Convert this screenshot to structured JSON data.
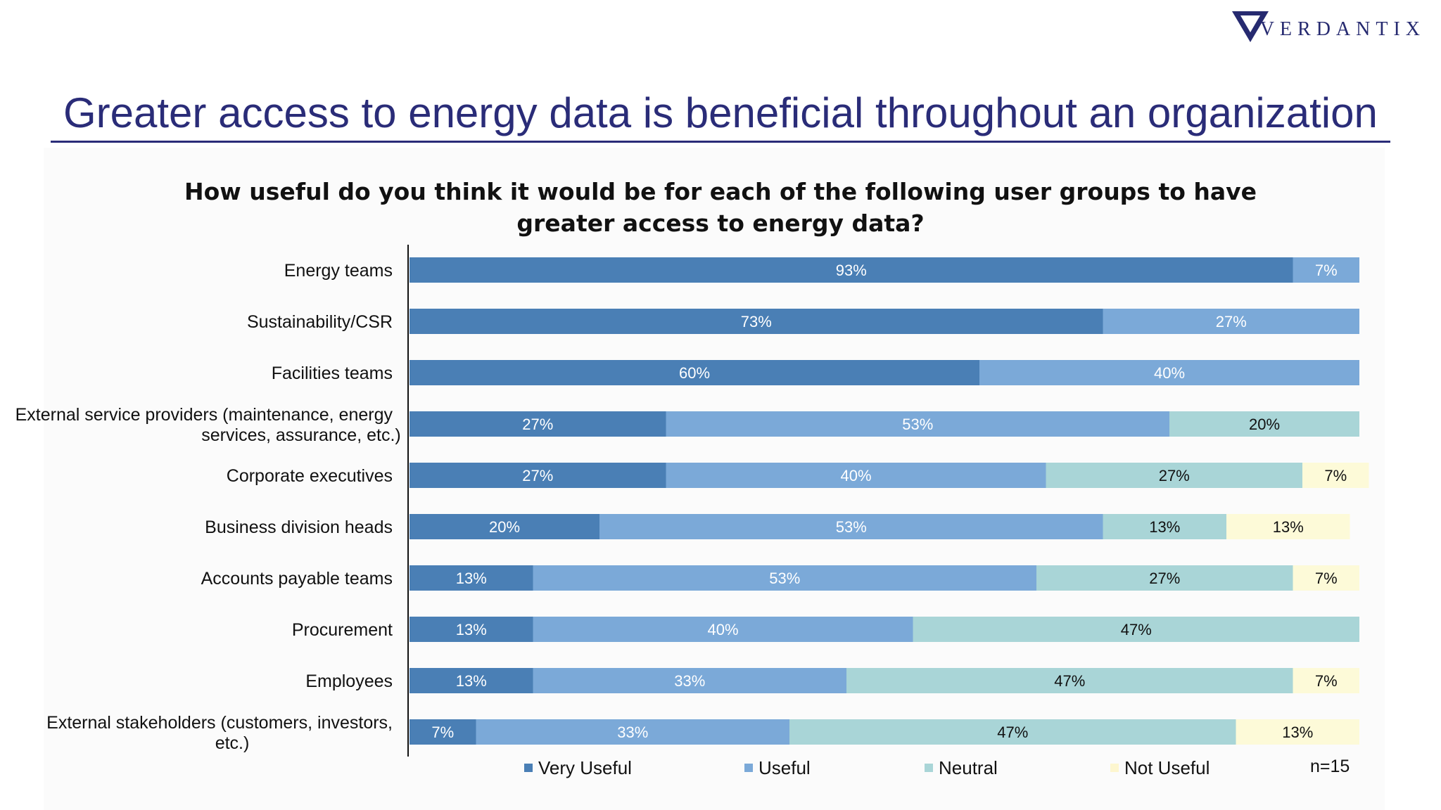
{
  "brand": {
    "name": "VERDANTIX"
  },
  "slide": {
    "title": "Greater access to energy data is beneficial throughout an organization"
  },
  "colors": {
    "very_useful": "#4a7fb5",
    "useful": "#7ba9d8",
    "neutral": "#a9d5d7",
    "not_useful": "#fdfad8",
    "title": "#2a2c78"
  },
  "chart_data": {
    "type": "bar",
    "orientation": "horizontal",
    "stacked": true,
    "title_lines": [
      "How useful do you think it would be for each of the following user groups to have",
      "greater access to energy data?"
    ],
    "categories": [
      [
        "Energy teams"
      ],
      [
        "Sustainability/CSR"
      ],
      [
        "Facilities teams"
      ],
      [
        "External service providers (maintenance, energy",
        "services, assurance, etc.)"
      ],
      [
        "Corporate executives"
      ],
      [
        "Business division heads"
      ],
      [
        "Accounts payable teams"
      ],
      [
        "Procurement"
      ],
      [
        "Employees"
      ],
      [
        "External stakeholders (customers, investors,",
        "etc.)"
      ]
    ],
    "series": [
      {
        "name": "Very Useful",
        "values": [
          93,
          73,
          60,
          27,
          27,
          20,
          13,
          13,
          13,
          7
        ]
      },
      {
        "name": "Useful",
        "values": [
          7,
          27,
          40,
          53,
          40,
          53,
          53,
          40,
          33,
          33
        ]
      },
      {
        "name": "Neutral",
        "values": [
          0,
          0,
          0,
          20,
          27,
          13,
          27,
          47,
          47,
          47
        ]
      },
      {
        "name": "Not Useful",
        "values": [
          0,
          0,
          0,
          0,
          7,
          13,
          7,
          0,
          7,
          13
        ]
      }
    ],
    "value_suffix": "%",
    "xlim": [
      0,
      100
    ],
    "legend_position": "bottom",
    "note": "n=15"
  }
}
